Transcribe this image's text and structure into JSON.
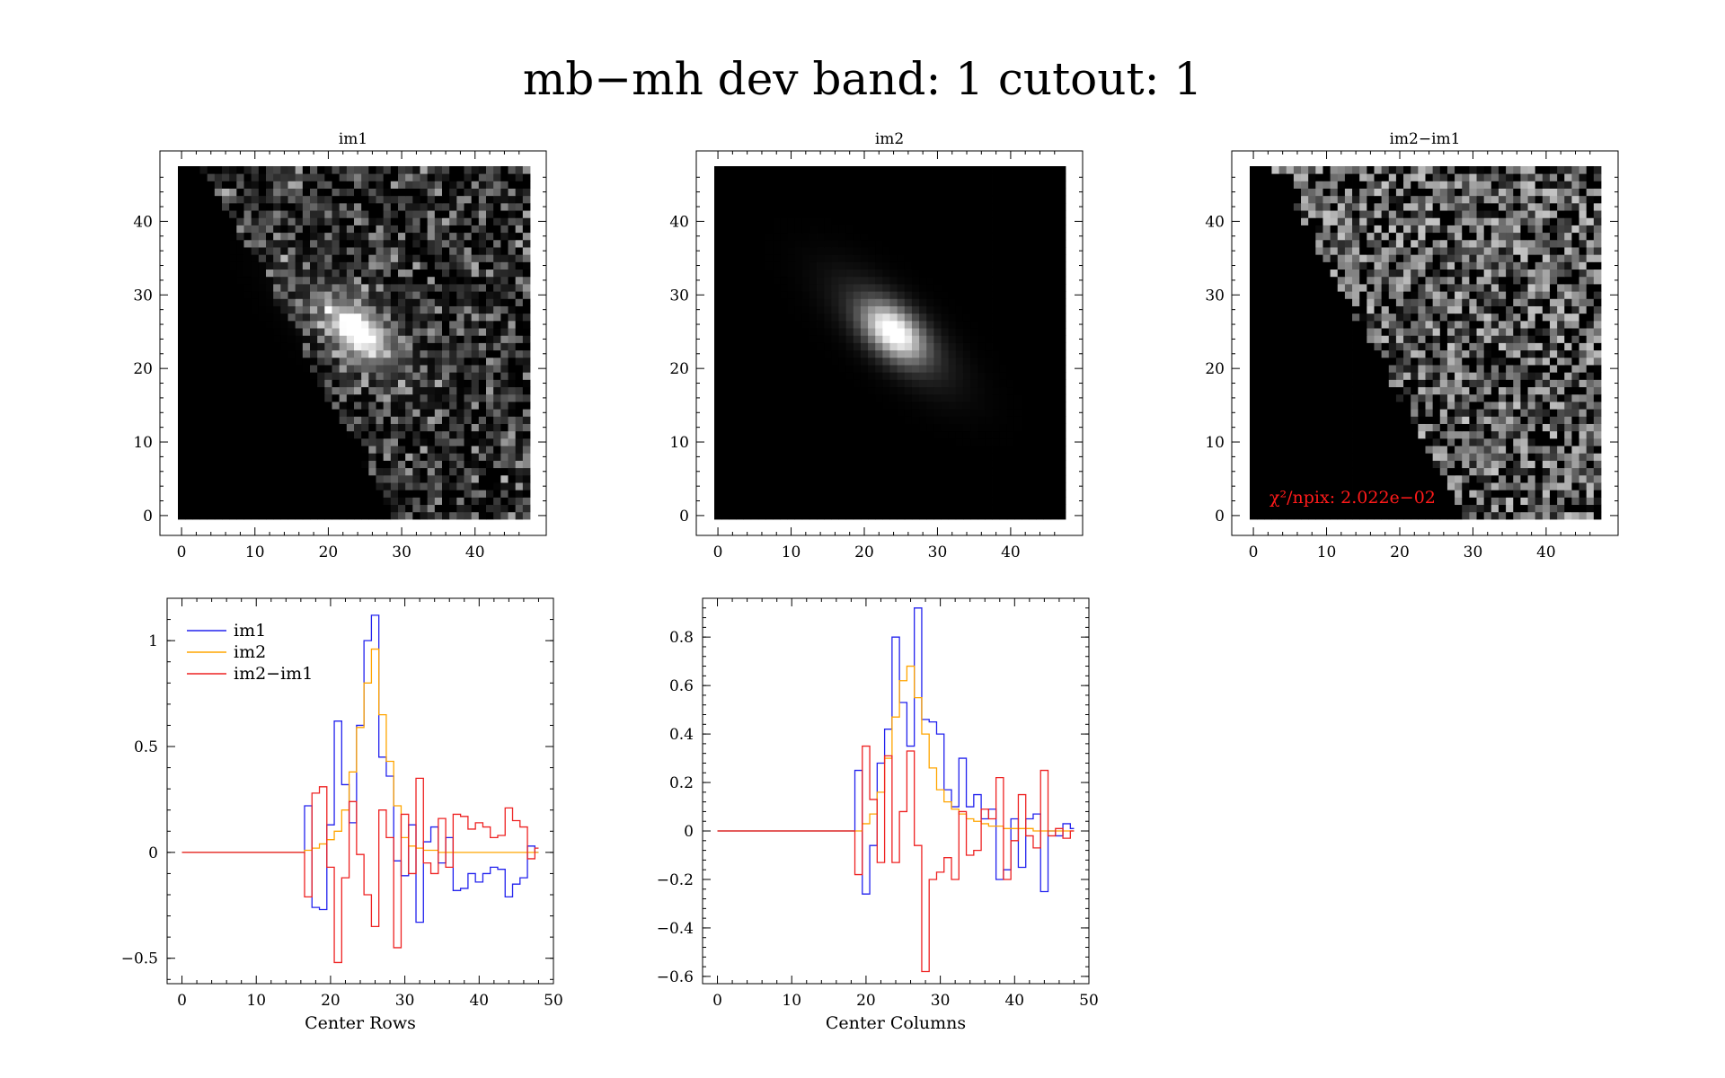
{
  "title": "mb−mh dev band: 1 cutout: 1",
  "colors": {
    "im1": "#2222ee",
    "im2": "#ffa500",
    "diff": "#ee2222",
    "annotation": "#ff1a1a"
  },
  "chart_data": [
    {
      "type": "heatmap",
      "title": "im1",
      "shape": [
        48,
        48
      ],
      "xlim": [
        -0.5,
        47.5
      ],
      "ylim": [
        -0.5,
        47.5
      ],
      "xticks": [
        0,
        10,
        20,
        30,
        40
      ],
      "yticks": [
        0,
        10,
        20,
        30,
        40
      ],
      "colormap": "gray",
      "description_values": {
        "source_peak": [
          24,
          25
        ],
        "noise_edge_slope": "diagonal"
      }
    },
    {
      "type": "heatmap",
      "title": "im2",
      "shape": [
        48,
        48
      ],
      "xlim": [
        -0.5,
        47.5
      ],
      "ylim": [
        -0.5,
        47.5
      ],
      "xticks": [
        0,
        10,
        20,
        30,
        40
      ],
      "yticks": [
        0,
        10,
        20,
        30,
        40
      ],
      "colormap": "gray",
      "description_values": {
        "source_peak": [
          24,
          25
        ]
      }
    },
    {
      "type": "heatmap",
      "title": "im2−im1",
      "shape": [
        48,
        48
      ],
      "xlim": [
        -0.5,
        47.5
      ],
      "ylim": [
        -0.5,
        47.5
      ],
      "xticks": [
        0,
        10,
        20,
        30,
        40
      ],
      "yticks": [
        0,
        10,
        20,
        30,
        40
      ],
      "colormap": "gray",
      "annotation": "χ²/npix: 2.022e−02"
    },
    {
      "type": "line",
      "title": "",
      "xlabel": "Center Rows",
      "ylabel": "",
      "xlim": [
        -2,
        50
      ],
      "ylim": [
        -0.62,
        1.2
      ],
      "xticks": [
        0,
        10,
        20,
        30,
        40,
        50
      ],
      "yticks": [
        -0.5,
        0,
        0.5,
        1
      ],
      "ytick_labels": [
        "−0.5",
        "0",
        "0.5",
        "1"
      ],
      "legend": [
        "im1",
        "im2",
        "im2−im1"
      ],
      "legend_position": "top-left",
      "drawstyle": "steps",
      "x": [
        0,
        1,
        2,
        3,
        4,
        5,
        6,
        7,
        8,
        9,
        10,
        11,
        12,
        13,
        14,
        15,
        16,
        17,
        18,
        19,
        20,
        21,
        22,
        23,
        24,
        25,
        26,
        27,
        28,
        29,
        30,
        31,
        32,
        33,
        34,
        35,
        36,
        37,
        38,
        39,
        40,
        41,
        42,
        43,
        44,
        45,
        46,
        47,
        48
      ],
      "series": [
        {
          "name": "im1",
          "values": [
            0,
            0,
            0,
            0,
            0,
            0,
            0,
            0,
            0,
            0,
            0,
            0,
            0,
            0,
            0,
            0,
            0,
            0.22,
            -0.26,
            -0.27,
            0.13,
            0.62,
            0.32,
            0.14,
            0.6,
            1.0,
            1.12,
            0.45,
            0.36,
            -0.04,
            -0.11,
            0.13,
            -0.33,
            0.05,
            0.12,
            -0.05,
            0.07,
            -0.18,
            -0.17,
            -0.1,
            -0.14,
            -0.1,
            -0.07,
            -0.08,
            -0.21,
            -0.15,
            -0.12,
            0.03,
            0
          ]
        },
        {
          "name": "im2",
          "values": [
            0,
            0,
            0,
            0,
            0,
            0,
            0,
            0,
            0,
            0,
            0,
            0,
            0,
            0,
            0,
            0,
            0,
            0.01,
            0.02,
            0.04,
            0.06,
            0.1,
            0.2,
            0.38,
            0.59,
            0.8,
            0.96,
            0.65,
            0.43,
            0.22,
            0.07,
            0.03,
            0.02,
            0.01,
            0.01,
            0,
            0,
            0,
            0,
            0,
            0,
            0,
            0,
            0,
            0,
            0,
            0,
            0,
            0
          ]
        },
        {
          "name": "im2−im1",
          "values": [
            0,
            0,
            0,
            0,
            0,
            0,
            0,
            0,
            0,
            0,
            0,
            0,
            0,
            0,
            0,
            0,
            0,
            -0.21,
            0.28,
            0.31,
            -0.07,
            -0.52,
            -0.12,
            0.24,
            -0.01,
            -0.2,
            -0.35,
            0.2,
            0.07,
            -0.45,
            0.18,
            -0.1,
            0.35,
            -0.05,
            -0.1,
            0.16,
            -0.07,
            0.18,
            0.17,
            0.11,
            0.14,
            0.12,
            0.07,
            0.08,
            0.21,
            0.15,
            0.12,
            -0.03,
            0.02
          ]
        }
      ]
    },
    {
      "type": "line",
      "title": "",
      "xlabel": "Center Columns",
      "ylabel": "",
      "xlim": [
        -2,
        50
      ],
      "ylim": [
        -0.63,
        0.96
      ],
      "xticks": [
        0,
        10,
        20,
        30,
        40,
        50
      ],
      "yticks": [
        -0.6,
        -0.4,
        -0.2,
        0,
        0.2,
        0.4,
        0.6,
        0.8
      ],
      "ytick_labels": [
        "−0.6",
        "−0.4",
        "−0.2",
        "0",
        "0.2",
        "0.4",
        "0.6",
        "0.8"
      ],
      "drawstyle": "steps",
      "x": [
        0,
        1,
        2,
        3,
        4,
        5,
        6,
        7,
        8,
        9,
        10,
        11,
        12,
        13,
        14,
        15,
        16,
        17,
        18,
        19,
        20,
        21,
        22,
        23,
        24,
        25,
        26,
        27,
        28,
        29,
        30,
        31,
        32,
        33,
        34,
        35,
        36,
        37,
        38,
        39,
        40,
        41,
        42,
        43,
        44,
        45,
        46,
        47,
        48
      ],
      "series": [
        {
          "name": "im1",
          "values": [
            0,
            0,
            0,
            0,
            0,
            0,
            0,
            0,
            0,
            0,
            0,
            0,
            0,
            0,
            0,
            0,
            0,
            0,
            0,
            0.25,
            -0.26,
            -0.06,
            0.28,
            0.42,
            0.8,
            0.53,
            0.35,
            0.92,
            0.46,
            0.45,
            0.4,
            0.17,
            0.1,
            0.3,
            0.1,
            0.15,
            0.05,
            0.09,
            -0.2,
            -0.16,
            0.05,
            -0.15,
            0.05,
            0.07,
            -0.25,
            0,
            -0.02,
            0.03,
            0.01
          ]
        },
        {
          "name": "im2",
          "values": [
            0,
            0,
            0,
            0,
            0,
            0,
            0,
            0,
            0,
            0,
            0,
            0,
            0,
            0,
            0,
            0,
            0,
            0,
            0,
            0,
            0.03,
            0.07,
            0.16,
            0.3,
            0.47,
            0.62,
            0.68,
            0.55,
            0.4,
            0.26,
            0.17,
            0.12,
            0.09,
            0.07,
            0.05,
            0.04,
            0.03,
            0.02,
            0.02,
            0.01,
            0.01,
            0.01,
            0.01,
            0,
            0,
            0,
            0,
            0,
            0
          ]
        },
        {
          "name": "im2−im1",
          "values": [
            0,
            0,
            0,
            0,
            0,
            0,
            0,
            0,
            0,
            0,
            0,
            0,
            0,
            0,
            0,
            0,
            0,
            0,
            0,
            -0.18,
            0.35,
            0.13,
            -0.13,
            0.31,
            -0.13,
            0.08,
            0.33,
            -0.06,
            -0.58,
            -0.2,
            -0.17,
            -0.11,
            -0.2,
            0.08,
            -0.1,
            -0.08,
            0.09,
            0.05,
            0.22,
            -0.2,
            -0.04,
            0.15,
            -0.02,
            -0.07,
            0.25,
            -0.02,
            0.01,
            -0.03,
            0
          ]
        }
      ]
    }
  ]
}
